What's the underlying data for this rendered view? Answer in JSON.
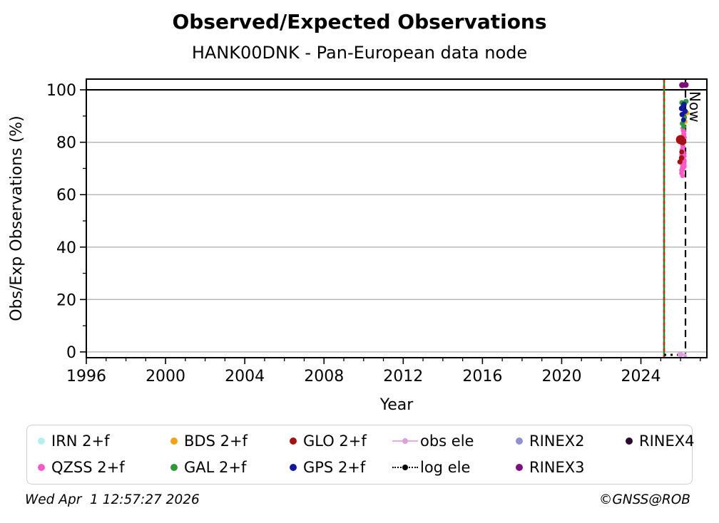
{
  "figure": {
    "title": "Observed/Expected Observations",
    "subtitle": "HANK00DNK - Pan-European data node",
    "footer_left": "Wed Apr  1 12:57:27 2026",
    "footer_right": "©GNSS@ROB"
  },
  "chart_data": {
    "type": "scatter",
    "title": "Observed/Expected Observations",
    "subtitle": "HANK00DNK - Pan-European data node",
    "xlabel": "Year",
    "ylabel": "Obs/Exp Observations (%)",
    "xlim": [
      1996,
      2027.33
    ],
    "ylim": [
      -2.2,
      104.1
    ],
    "x_ticks": [
      1996,
      2000,
      2004,
      2008,
      2012,
      2016,
      2020,
      2024
    ],
    "y_ticks": [
      0,
      20,
      40,
      60,
      80,
      100
    ],
    "x_minor_step": 1,
    "y_minor_step": 10,
    "grid": "horizontal-gray",
    "grid_color": "#b2b2b2",
    "reference_line": {
      "y": 100,
      "color": "#000000",
      "style": "solid"
    },
    "now_marker": {
      "x": 2026.25,
      "label": "Now",
      "style": "dashed",
      "color": "#000000"
    },
    "start_marker": {
      "x": 2025.17,
      "style": "green-solid-with-red-dashes",
      "colors": [
        "#1f9020",
        "#dd2020"
      ]
    },
    "log_ele_segment": {
      "y": -1.1,
      "x_start": 2025.17,
      "x_end": 2026.25,
      "style": "dotted",
      "color": "#000000"
    },
    "legend_position": "bottom",
    "series": [
      {
        "name": "QZSS 2+f",
        "color": "#fb59c7",
        "points": [
          [
            2026.12,
            85.4,
            3.4
          ],
          [
            2026.15,
            84.3,
            3.6
          ],
          [
            2026.17,
            83.1,
            3.6
          ],
          [
            2026.18,
            81.9,
            3.8
          ],
          [
            2026.13,
            80.7,
            3.8
          ],
          [
            2026.08,
            79.5,
            3.6
          ],
          [
            2026.12,
            78.3,
            3.6
          ],
          [
            2026.08,
            77.1,
            3.4
          ],
          [
            2026.14,
            76.0,
            3.8
          ],
          [
            2026.06,
            75.2,
            3.3
          ],
          [
            2026.16,
            74.8,
            4.2
          ],
          [
            2026.11,
            73.6,
            4.4
          ],
          [
            2026.04,
            73.2,
            3.3
          ],
          [
            2026.17,
            72.8,
            4.0
          ],
          [
            2026.09,
            72.3,
            4.6
          ],
          [
            2026.15,
            71.4,
            4.4
          ],
          [
            2026.18,
            70.8,
            3.6
          ],
          [
            2026.12,
            70.3,
            4.2
          ],
          [
            2026.07,
            69.3,
            3.8
          ],
          [
            2026.05,
            68.2,
            3.4
          ],
          [
            2026.1,
            67.2,
            3.2
          ]
        ]
      },
      {
        "name": "GLO 2+f",
        "color": "#a31114",
        "points": [
          [
            2026.0,
            81.0,
            6.5
          ],
          [
            2026.11,
            80.2,
            5.0
          ],
          [
            2026.06,
            76.3,
            3.4
          ],
          [
            2026.05,
            74.0,
            3.8
          ],
          [
            2025.97,
            72.5,
            3.6
          ]
        ]
      },
      {
        "name": "BDS 2+f",
        "color": "#f0a31b",
        "points": [
          [
            2026.32,
            91.2,
            3.4
          ],
          [
            2026.24,
            87.9,
            3.2
          ]
        ]
      },
      {
        "name": "GAL 2+f",
        "color": "#2d9937",
        "points": [
          [
            2026.28,
            95.6,
            3.7
          ],
          [
            2026.07,
            95.1,
            3.6
          ],
          [
            2026.2,
            89.5,
            3.5
          ],
          [
            2026.09,
            87.1,
            3.6
          ],
          [
            2026.17,
            86.0,
            3.4
          ]
        ]
      },
      {
        "name": "GPS 2+f",
        "color": "#14189c",
        "points": [
          [
            2026.17,
            94.4,
            3.9
          ],
          [
            2026.05,
            92.9,
            3.8
          ],
          [
            2026.12,
            93.5,
            3.6
          ],
          [
            2026.23,
            91.8,
            3.8
          ],
          [
            2026.08,
            90.6,
            3.7
          ],
          [
            2026.15,
            88.5,
            3.5
          ]
        ]
      },
      {
        "name": "RINEX3",
        "color": "#7c0e7c",
        "points": [
          [
            2026.08,
            101.8,
            4.2
          ],
          [
            2026.26,
            101.9,
            4.2
          ]
        ]
      },
      {
        "name": "obs ele",
        "color": "#dda0dd",
        "points": [
          [
            2025.99,
            -1.0,
            4.0
          ],
          [
            2026.21,
            -1.2,
            2.8
          ]
        ]
      }
    ]
  },
  "legend": {
    "items": [
      {
        "label": "IRN 2+f",
        "color": "#b7eef0",
        "marker": "dot",
        "row": 0,
        "col": 0
      },
      {
        "label": "BDS 2+f",
        "color": "#f0a31b",
        "marker": "dot",
        "row": 0,
        "col": 1
      },
      {
        "label": "GLO 2+f",
        "color": "#a31114",
        "marker": "dot",
        "row": 0,
        "col": 2
      },
      {
        "label": "obs ele",
        "color": "#dda0dd",
        "marker": "line-dot",
        "row": 0,
        "col": 3
      },
      {
        "label": "RINEX2",
        "color": "#9191cf",
        "marker": "dot",
        "row": 0,
        "col": 4
      },
      {
        "label": "RINEX4",
        "color": "#2a0b2d",
        "marker": "dot",
        "row": 0,
        "col": 5
      },
      {
        "label": "QZSS 2+f",
        "color": "#fb59c7",
        "marker": "dot",
        "row": 1,
        "col": 0
      },
      {
        "label": "GAL 2+f",
        "color": "#2d9937",
        "marker": "dot",
        "row": 1,
        "col": 1
      },
      {
        "label": "GPS 2+f",
        "color": "#14189c",
        "marker": "dot",
        "row": 1,
        "col": 2
      },
      {
        "label": "log ele",
        "color": "#000000",
        "marker": "dotted-line-dot",
        "row": 1,
        "col": 3
      },
      {
        "label": "RINEX3",
        "color": "#7c0e7c",
        "marker": "dot",
        "row": 1,
        "col": 4
      }
    ]
  }
}
